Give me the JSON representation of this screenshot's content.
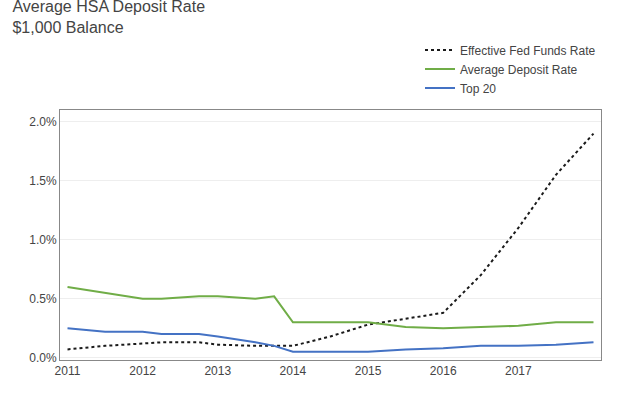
{
  "chart_data": {
    "type": "line",
    "title": "Average HSA Deposit Rate",
    "subtitle": "$1,000 Balance",
    "x": [
      2011,
      2011.5,
      2012,
      2012.25,
      2012.75,
      2013,
      2013.5,
      2013.75,
      2014,
      2014.5,
      2015,
      2015.5,
      2016,
      2016.5,
      2017,
      2017.5,
      2018
    ],
    "series": [
      {
        "name": "Effective Fed Funds Rate",
        "color": "#1a1a1a",
        "line_style": "dotted",
        "values": [
          0.0007,
          0.001,
          0.0012,
          0.0013,
          0.0013,
          0.0011,
          0.001,
          0.001,
          0.001,
          0.0018,
          0.0028,
          0.0033,
          0.0038,
          0.007,
          0.011,
          0.0155,
          0.019
        ]
      },
      {
        "name": "Average Deposit Rate",
        "color": "#70ad47",
        "line_style": "solid",
        "values": [
          0.006,
          0.0055,
          0.005,
          0.005,
          0.0052,
          0.0052,
          0.005,
          0.0052,
          0.003,
          0.003,
          0.003,
          0.0026,
          0.0025,
          0.0026,
          0.0027,
          0.003,
          0.003
        ]
      },
      {
        "name": "Top 20",
        "color": "#4472c4",
        "line_style": "solid",
        "values": [
          0.0025,
          0.0022,
          0.0022,
          0.002,
          0.002,
          0.0018,
          0.0013,
          0.001,
          0.0005,
          0.0005,
          0.0005,
          0.0007,
          0.0008,
          0.001,
          0.001,
          0.0011,
          0.0013
        ]
      }
    ],
    "xlim": [
      2010.9,
      2018.1
    ],
    "xticks": [
      2011,
      2012,
      2013,
      2014,
      2015,
      2016,
      2017
    ],
    "ylim": [
      -0.0002,
      0.021
    ],
    "yticks": [
      {
        "value": 0.0,
        "label": "0.0%"
      },
      {
        "value": 0.005,
        "label": "0.5%"
      },
      {
        "value": 0.01,
        "label": "1.0%"
      },
      {
        "value": 0.015,
        "label": "1.5%"
      },
      {
        "value": 0.02,
        "label": "2.0%"
      }
    ],
    "grid": "y",
    "legend": "top right"
  }
}
